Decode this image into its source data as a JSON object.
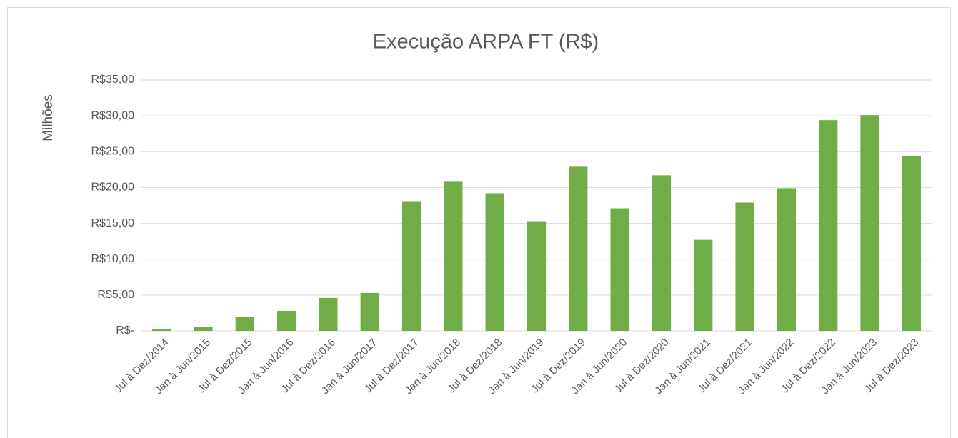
{
  "chart_data": {
    "type": "bar",
    "title": "Execução ARPA FT (R$)",
    "y_label": "Milhões",
    "categories": [
      "Jul à Dez/2014",
      "Jan à Jun/2015",
      "Jul à Dez/2015",
      "Jan à Jun/2016",
      "Jul à Dez/2016",
      "Jan à Jun/2017",
      "Jul à Dez/2017",
      "Jan à Jun/2018",
      "Jul à Dez/2018",
      "Jan à Jun/2019",
      "Jul à Dez/2019",
      "Jan à Jun/2020",
      "Jul à Dez/2020",
      "Jan à Jun/2021",
      "Jul à Dez/2021",
      "Jan à Jun/2022",
      "Jul à Dez/2022",
      "Jan à Jun/2023",
      "Jul à Dez/2023"
    ],
    "values": [
      0.2,
      0.6,
      1.9,
      2.8,
      4.6,
      5.3,
      18.0,
      20.8,
      19.2,
      15.3,
      22.9,
      17.1,
      21.7,
      12.7,
      17.9,
      19.9,
      29.4,
      30.1,
      24.4
    ],
    "color": "#70ad47",
    "ylim": [
      0,
      35
    ],
    "yticks": [
      {
        "value": 0,
        "label": "R$-"
      },
      {
        "value": 5,
        "label": "R$5,00"
      },
      {
        "value": 10,
        "label": "R$10,00"
      },
      {
        "value": 15,
        "label": "R$15,00"
      },
      {
        "value": 20,
        "label": "R$20,00"
      },
      {
        "value": 25,
        "label": "R$25,00"
      },
      {
        "value": 30,
        "label": "R$30,00"
      },
      {
        "value": 35,
        "label": "R$35,00"
      }
    ],
    "grid": true
  }
}
